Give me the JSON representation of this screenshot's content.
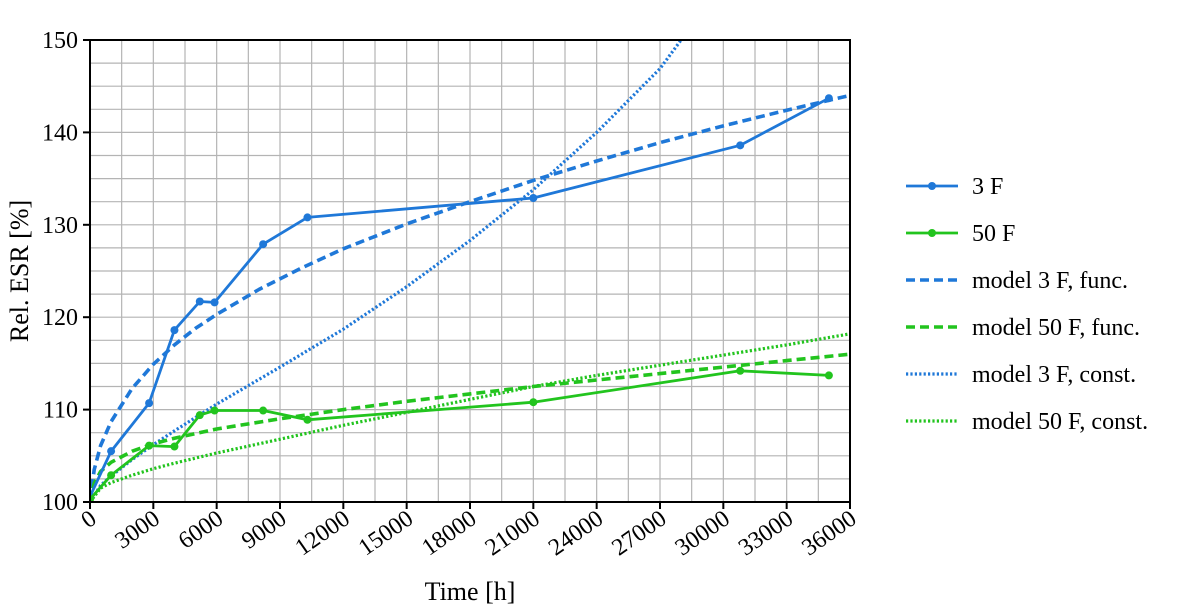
{
  "chart_data": {
    "type": "line",
    "title": "",
    "xlabel": "Time [h]",
    "ylabel": "Rel. ESR [%]",
    "xlim": [
      0,
      36000
    ],
    "ylim": [
      100,
      150
    ],
    "xticks": [
      0,
      3000,
      6000,
      9000,
      12000,
      15000,
      18000,
      21000,
      24000,
      27000,
      30000,
      33000,
      36000
    ],
    "yticks": [
      100,
      110,
      120,
      130,
      140,
      150
    ],
    "xtick_labels": [
      "0",
      "3000",
      "6000",
      "9000",
      "12000",
      "15000",
      "18000",
      "21000",
      "24000",
      "27000",
      "30000",
      "33000",
      "36000"
    ],
    "ytick_labels": [
      "100",
      "110",
      "120",
      "130",
      "140",
      "150"
    ],
    "grid": true,
    "legend_position": "right",
    "series": [
      {
        "name": "3 F",
        "style": "solid-markers",
        "color": "#1f78d8",
        "x": [
          0,
          1000,
          2800,
          4000,
          5200,
          5900,
          8200,
          10300,
          21000,
          30800,
          35000
        ],
        "y": [
          100.6,
          105.5,
          110.7,
          118.6,
          121.7,
          121.6,
          127.9,
          130.8,
          132.9,
          138.6,
          143.7
        ]
      },
      {
        "name": "50 F",
        "style": "solid-markers",
        "color": "#22c41e",
        "x": [
          0,
          1000,
          2800,
          4000,
          5200,
          5900,
          8200,
          10300,
          21000,
          30800,
          35000
        ],
        "y": [
          100.3,
          102.9,
          106.1,
          106.0,
          109.4,
          109.9,
          109.9,
          108.9,
          110.8,
          114.2,
          113.7
        ]
      },
      {
        "name": "model 3 F, func.",
        "style": "dashed",
        "color": "#1f78d8",
        "x": [
          0,
          200,
          500,
          1000,
          2000,
          3000,
          4000,
          5000,
          6000,
          8000,
          10000,
          12000,
          15000,
          18000,
          21000,
          24000,
          27000,
          30000,
          33000,
          36000
        ],
        "y": [
          100.0,
          103.5,
          106.1,
          108.7,
          112.3,
          114.9,
          117.0,
          118.8,
          120.3,
          123.0,
          125.3,
          127.4,
          130.1,
          132.5,
          134.8,
          136.9,
          138.9,
          140.7,
          142.4,
          144.0
        ]
      },
      {
        "name": "model 50 F, func.",
        "style": "dashed",
        "color": "#22c41e",
        "x": [
          0,
          200,
          500,
          1000,
          2000,
          3000,
          4000,
          6000,
          9000,
          12000,
          15000,
          18000,
          21000,
          24000,
          27000,
          30000,
          33000,
          36000
        ],
        "y": [
          100.0,
          102.0,
          103.3,
          104.3,
          105.5,
          106.3,
          106.9,
          107.9,
          109.0,
          110.0,
          110.9,
          111.7,
          112.5,
          113.2,
          113.9,
          114.6,
          115.3,
          116.0
        ]
      },
      {
        "name": "model 3 F, const.",
        "style": "dotted",
        "color": "#1f78d8",
        "x": [
          0,
          500,
          1000,
          2000,
          3000,
          4000,
          6000,
          9000,
          12000,
          15000,
          18000,
          21000,
          24000,
          27000,
          28000
        ],
        "y": [
          100.0,
          101.8,
          102.8,
          104.6,
          106.2,
          107.7,
          110.6,
          114.6,
          118.7,
          123.3,
          128.3,
          133.8,
          140.0,
          146.9,
          150.0
        ]
      },
      {
        "name": "model 50 F, const.",
        "style": "dotted",
        "color": "#22c41e",
        "x": [
          0,
          500,
          1000,
          2000,
          3000,
          4000,
          6000,
          9000,
          12000,
          15000,
          18000,
          21000,
          24000,
          27000,
          30000,
          33000,
          36000
        ],
        "y": [
          100.0,
          101.5,
          102.1,
          102.9,
          103.6,
          104.2,
          105.3,
          106.8,
          108.3,
          109.7,
          111.1,
          112.5,
          113.7,
          114.8,
          115.9,
          117.0,
          118.2
        ]
      }
    ]
  }
}
